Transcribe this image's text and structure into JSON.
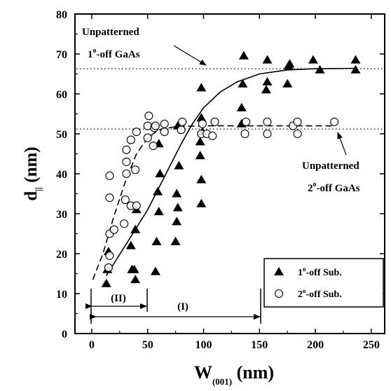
{
  "chart_data": {
    "type": "scatter",
    "x_axis": {
      "label_main": "W",
      "label_sub": "(001)",
      "label_unit": " (nm)",
      "ticks": [
        0,
        50,
        100,
        150,
        200,
        250
      ],
      "tick_labels": [
        "0",
        "50",
        "100",
        "150",
        "200",
        "250"
      ],
      "range": [
        -15,
        262
      ]
    },
    "y_axis": {
      "label_main": "d",
      "label_sub": "||",
      "label_unit": " (nm)",
      "ticks": [
        0,
        10,
        20,
        30,
        40,
        50,
        60,
        70,
        80
      ],
      "tick_labels": [
        "0",
        "10",
        "20",
        "30",
        "40",
        "50",
        "60",
        "70",
        "80"
      ],
      "range": [
        0,
        80
      ]
    },
    "series": [
      {
        "name": "1°-off Sub.",
        "legend_label": "1",
        "legend_suffix": "-off Sub.",
        "marker": "filled-triangle",
        "points": [
          [
            13,
            12.5
          ],
          [
            14,
            16
          ],
          [
            15,
            20.5
          ],
          [
            35,
            22
          ],
          [
            36,
            16
          ],
          [
            38,
            16
          ],
          [
            39,
            13.5
          ],
          [
            39,
            26
          ],
          [
            40,
            31
          ],
          [
            57,
            15.5
          ],
          [
            58,
            23
          ],
          [
            60,
            30.5
          ],
          [
            59,
            35.5
          ],
          [
            61,
            40
          ],
          [
            60,
            47.5
          ],
          [
            75,
            23
          ],
          [
            76,
            28
          ],
          [
            77,
            31.5
          ],
          [
            76,
            35
          ],
          [
            78,
            42
          ],
          [
            77,
            52
          ],
          [
            98,
            32.5
          ],
          [
            98,
            38.5
          ],
          [
            97,
            44.5
          ],
          [
            97,
            48
          ],
          [
            99,
            50.5
          ],
          [
            98,
            54
          ],
          [
            98,
            61.5
          ],
          [
            134,
            52.5
          ],
          [
            134,
            56.5
          ],
          [
            135,
            62.5
          ],
          [
            136,
            69.5
          ],
          [
            156,
            61
          ],
          [
            157,
            63
          ],
          [
            157,
            68.5
          ],
          [
            175,
            62.5
          ],
          [
            176,
            67
          ],
          [
            177,
            67.5
          ],
          [
            198,
            68.5
          ],
          [
            204,
            66
          ],
          [
            236,
            66
          ],
          [
            236,
            68.5
          ]
        ]
      },
      {
        "name": "2°-off Sub.",
        "legend_label": "2",
        "legend_suffix": "-off Sub.",
        "marker": "open-circle",
        "points": [
          [
            15,
            16.5
          ],
          [
            16,
            19.5
          ],
          [
            16,
            25
          ],
          [
            16,
            34
          ],
          [
            16,
            39.5
          ],
          [
            20,
            26
          ],
          [
            29,
            27.5
          ],
          [
            30,
            33.5
          ],
          [
            31,
            40
          ],
          [
            31,
            43
          ],
          [
            31,
            46
          ],
          [
            35,
            32
          ],
          [
            35,
            48.5
          ],
          [
            39,
            41
          ],
          [
            40,
            32
          ],
          [
            40,
            50.5
          ],
          [
            50,
            49
          ],
          [
            50,
            52
          ],
          [
            51,
            54.5
          ],
          [
            55,
            47
          ],
          [
            56,
            51.5
          ],
          [
            57,
            52
          ],
          [
            65,
            50.5
          ],
          [
            65,
            52.5
          ],
          [
            80,
            51
          ],
          [
            81,
            53
          ],
          [
            98,
            50
          ],
          [
            99,
            52.5
          ],
          [
            103,
            50
          ],
          [
            108,
            49.5
          ],
          [
            110,
            53
          ],
          [
            137,
            50
          ],
          [
            138,
            53
          ],
          [
            157,
            50
          ],
          [
            157,
            53
          ],
          [
            180,
            52
          ],
          [
            184,
            50
          ],
          [
            184,
            53
          ],
          [
            217,
            53
          ]
        ]
      }
    ],
    "reference_lines": [
      {
        "y": 66.3,
        "style": "dotted"
      },
      {
        "y": 51.2,
        "style": "dotted"
      }
    ],
    "fit_curves": [
      {
        "style": "solid",
        "points": [
          [
            13,
            14.5
          ],
          [
            25,
            19.8
          ],
          [
            40,
            26.5
          ],
          [
            50,
            31
          ],
          [
            60,
            36.5
          ],
          [
            70,
            42
          ],
          [
            80,
            47.5
          ],
          [
            90,
            52.5
          ],
          [
            100,
            56.5
          ],
          [
            115,
            60.5
          ],
          [
            130,
            63
          ],
          [
            150,
            65
          ],
          [
            175,
            66
          ],
          [
            200,
            66.3
          ],
          [
            236,
            66.4
          ]
        ]
      },
      {
        "style": "dashed",
        "points": [
          [
            1,
            13.5
          ],
          [
            10,
            20
          ],
          [
            20,
            29.5
          ],
          [
            30,
            38
          ],
          [
            40,
            45
          ],
          [
            50,
            49
          ],
          [
            60,
            51
          ],
          [
            75,
            51.8
          ],
          [
            100,
            52
          ],
          [
            150,
            52
          ],
          [
            200,
            52
          ],
          [
            215,
            52
          ]
        ]
      }
    ],
    "annotations": {
      "unpatterned_1": {
        "line1": "Unpatterned",
        "line2_num": "1",
        "line2_rest": "-off GaAs"
      },
      "unpatterned_2": {
        "line1": "Unpatterned",
        "line2_num": "2",
        "line2_rest": "-off GaAs"
      },
      "region_ii": "(II)",
      "region_i": "(I)"
    },
    "legend": {
      "placement": "bottom-right"
    }
  }
}
